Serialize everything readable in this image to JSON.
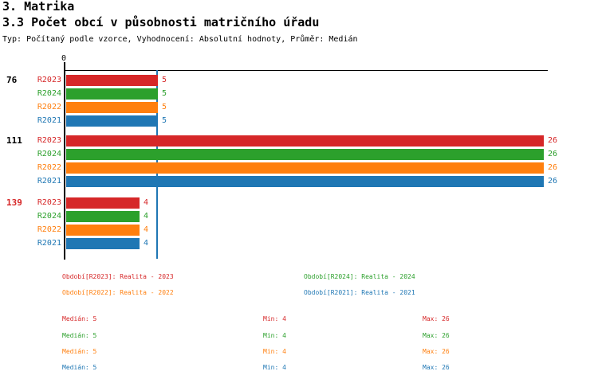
{
  "header": {
    "title": "3. Matrika",
    "subtitle": "3.3 Počet obcí v působnosti matričního úřadu",
    "meta": "Typ: Počítaný podle vzorce, Vyhodnocení: Absolutní hodnoty, Průměr: Medián"
  },
  "colors": {
    "R2023": "#d62728",
    "R2024": "#2ca02c",
    "R2022": "#ff7f0e",
    "R2021": "#1f77b4",
    "axis": "#000000",
    "median_line": "#1f77b4",
    "group_highlight": "#d62728"
  },
  "chart_data": {
    "type": "bar",
    "orientation": "horizontal",
    "title": "3.3 Počet obcí v působnosti matričního úřadu",
    "axis_tick_label": "0",
    "xlim": [
      0,
      26
    ],
    "grid": false,
    "median_line_value": 5,
    "series_order": [
      "R2023",
      "R2024",
      "R2022",
      "R2021"
    ],
    "groups": [
      {
        "label": "76",
        "highlighted": false,
        "values": {
          "R2023": 5,
          "R2024": 5,
          "R2022": 5,
          "R2021": 5
        }
      },
      {
        "label": "111",
        "highlighted": false,
        "values": {
          "R2023": 26,
          "R2024": 26,
          "R2022": 26,
          "R2021": 26
        }
      },
      {
        "label": "139",
        "highlighted": true,
        "values": {
          "R2023": 4,
          "R2024": 4,
          "R2022": 4,
          "R2021": 4
        }
      }
    ]
  },
  "legend": {
    "items": [
      {
        "series": "R2023",
        "label": "Období[R2023]: Realita - 2023"
      },
      {
        "series": "R2024",
        "label": "Období[R2024]: Realita - 2024"
      },
      {
        "series": "R2022",
        "label": "Období[R2022]: Realita - 2022"
      },
      {
        "series": "R2021",
        "label": "Období[R2021]: Realita - 2021"
      }
    ]
  },
  "stats": {
    "rows": [
      {
        "series": "R2023",
        "median": "Medián: 5",
        "min": "Min: 4",
        "max": "Max: 26"
      },
      {
        "series": "R2024",
        "median": "Medián: 5",
        "min": "Min: 4",
        "max": "Max: 26"
      },
      {
        "series": "R2022",
        "median": "Medián: 5",
        "min": "Min: 4",
        "max": "Max: 26"
      },
      {
        "series": "R2021",
        "median": "Medián: 5",
        "min": "Min: 4",
        "max": "Max: 26"
      }
    ]
  }
}
